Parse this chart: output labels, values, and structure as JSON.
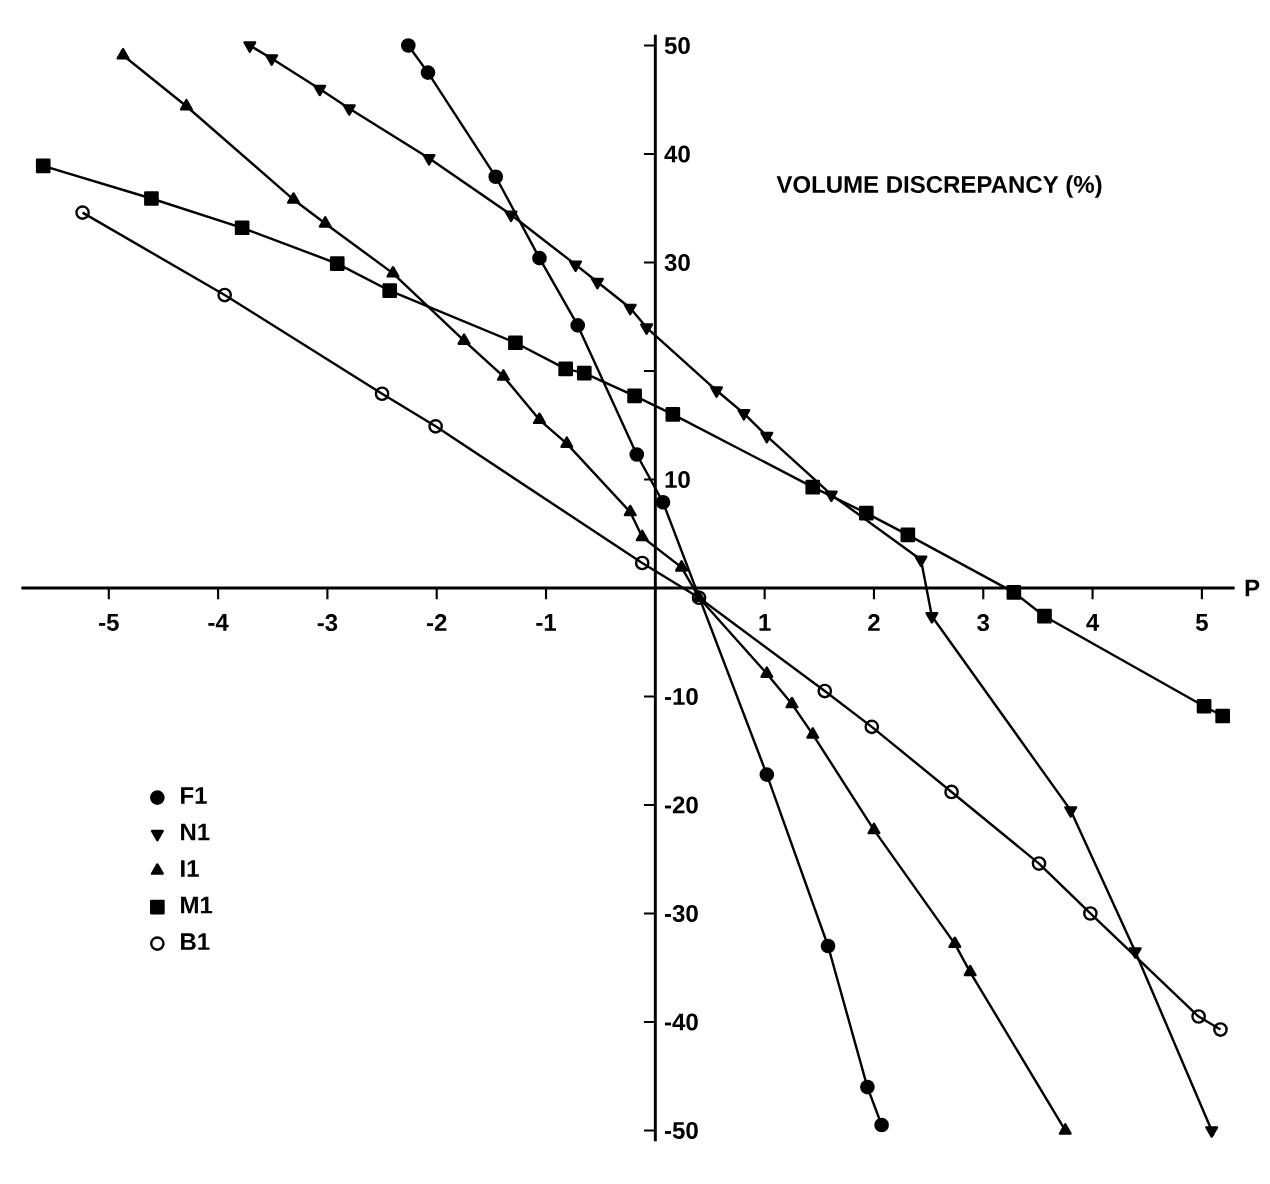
{
  "chart_data": {
    "type": "line",
    "xlabel": "P",
    "ylabel": "VOLUME DISCREPANCY (%)",
    "xlim": [
      -5.8,
      5.3
    ],
    "ylim": [
      -51,
      51
    ],
    "xticks": [
      -5,
      -4,
      -3,
      -2,
      -1,
      1,
      2,
      3,
      4,
      5
    ],
    "yticks": [
      -50,
      -40,
      -30,
      -20,
      -10,
      10,
      {
        "value": 20,
        "label": null
      },
      30,
      40,
      50
    ],
    "legend": "bottom left",
    "line_style": "solid",
    "series": [
      {
        "name": "F1",
        "color": "#000000",
        "marker": "circle",
        "x": [
          -2.26,
          -2.08,
          -1.46,
          -1.06,
          -0.71,
          -0.17,
          0.07,
          0.4,
          1.02,
          1.58,
          1.94,
          2.07
        ],
        "values": [
          50,
          47.5,
          37.9,
          30.4,
          24.2,
          12.3,
          7.9,
          null,
          -17.2,
          -33,
          -46,
          -49.5
        ]
      },
      {
        "name": "N1",
        "color": "#000000",
        "marker": "triangle-down",
        "x": [
          -3.71,
          -3.51,
          -3.07,
          -2.8,
          -2.07,
          -1.32,
          -0.73,
          -0.53,
          -0.23,
          -0.08,
          0.56,
          0.81,
          1.02,
          1.61,
          2.43,
          2.53,
          3.8,
          4.39,
          5.09
        ],
        "values": [
          50,
          48.8,
          46,
          44.2,
          39.6,
          34.4,
          29.8,
          28.2,
          25.8,
          24,
          18.2,
          16.1,
          14,
          8.6,
          2.6,
          -2.6,
          -20.5,
          -33.5,
          -50
        ]
      },
      {
        "name": "I1",
        "color": "#000000",
        "marker": "triangle",
        "x": [
          -4.87,
          -4.29,
          -3.31,
          -3.02,
          -2.4,
          -1.75,
          -1.39,
          -1.06,
          -0.81,
          -0.23,
          -0.12,
          0.24,
          0.4,
          1.02,
          1.25,
          1.44,
          2.0,
          2.74,
          2.88,
          3.75
        ],
        "values": [
          49.1,
          44.4,
          35.8,
          33.6,
          29,
          22.8,
          19.5,
          15.5,
          13.3,
          7,
          4.7,
          1.9,
          -0.9,
          -7.9,
          -10.7,
          -13.5,
          -22.3,
          -32.8,
          -35.4,
          -50
        ]
      },
      {
        "name": "M1",
        "color": "#000000",
        "marker": "square",
        "x": [
          -5.6,
          -4.61,
          -3.78,
          -2.91,
          -2.43,
          -1.28,
          -0.82,
          -0.65,
          -0.19,
          0.16,
          1.44,
          1.93,
          2.31,
          3.28,
          3.56,
          5.02,
          5.19
        ],
        "values": [
          38.9,
          35.9,
          33.2,
          29.9,
          27.4,
          22.6,
          20.2,
          19.8,
          17.7,
          16,
          9.3,
          6.9,
          4.9,
          -0.4,
          -2.6,
          -10.9,
          -11.8
        ]
      },
      {
        "name": "B1",
        "color": "#000000",
        "marker": "circle-open",
        "x": [
          -5.24,
          -3.94,
          -2.5,
          -2.01,
          -0.12,
          0.4,
          1.55,
          1.98,
          2.71,
          3.51,
          3.98,
          4.97,
          5.17
        ],
        "values": [
          34.6,
          27,
          17.9,
          14.9,
          2.3,
          -0.9,
          -9.5,
          -12.8,
          -18.8,
          -25.4,
          -30,
          -39.5,
          -40.7
        ]
      }
    ]
  }
}
